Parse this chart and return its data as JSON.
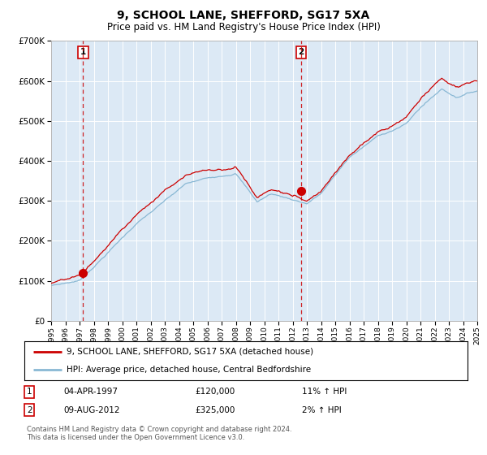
{
  "title": "9, SCHOOL LANE, SHEFFORD, SG17 5XA",
  "subtitle": "Price paid vs. HM Land Registry's House Price Index (HPI)",
  "bg_color": "#dce9f5",
  "red_line_color": "#cc0000",
  "blue_line_color": "#89b8d4",
  "marker_color": "#cc0000",
  "dashed_line_color": "#cc0000",
  "ylim": [
    0,
    700000
  ],
  "yticks": [
    0,
    100000,
    200000,
    300000,
    400000,
    500000,
    600000,
    700000
  ],
  "ytick_labels": [
    "£0",
    "£100K",
    "£200K",
    "£300K",
    "£400K",
    "£500K",
    "£600K",
    "£700K"
  ],
  "sale1_year": 1997.25,
  "sale1_price": 120000,
  "sale1_label": "1",
  "sale2_year": 2012.6,
  "sale2_price": 325000,
  "sale2_label": "2",
  "legend_entry1": "9, SCHOOL LANE, SHEFFORD, SG17 5XA (detached house)",
  "legend_entry2": "HPI: Average price, detached house, Central Bedfordshire",
  "table_row1": [
    "1",
    "04-APR-1997",
    "£120,000",
    "11% ↑ HPI"
  ],
  "table_row2": [
    "2",
    "09-AUG-2012",
    "£325,000",
    "2% ↑ HPI"
  ],
  "footnote": "Contains HM Land Registry data © Crown copyright and database right 2024.\nThis data is licensed under the Open Government Licence v3.0.",
  "xstart": 1995,
  "xend": 2025
}
